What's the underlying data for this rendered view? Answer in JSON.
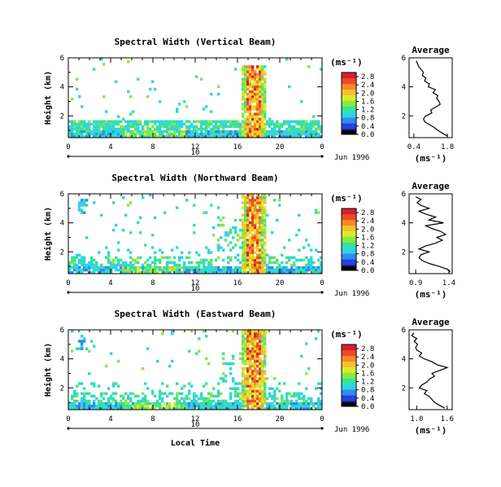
{
  "xlabel": "Local Time",
  "date_label": "Jun 1996",
  "day_label": "10",
  "colorbar_unit": "(ms⁻¹)",
  "average_title": "Average",
  "average_xlabel": "(ms⁻¹)",
  "ylabel": "Height (km)",
  "colormap": [
    "#1a1a8c",
    "#2a3fe0",
    "#2f8cf2",
    "#30d3e8",
    "#37e39a",
    "#86ea3f",
    "#d8ec2c",
    "#f6c22b",
    "#f58a2a",
    "#ef4a28",
    "#d7202b"
  ],
  "chart_data": [
    {
      "type": "heatmap",
      "title": "Spectral Width (Vertical Beam)",
      "xlabel": "Local Time",
      "ylabel": "Height (km)",
      "x_ticks": [
        "0",
        "4",
        "8",
        "12",
        "16",
        "20",
        "0"
      ],
      "y_ticks": [
        "2",
        "4",
        "6"
      ],
      "xlim": [
        0,
        24
      ],
      "ylim": [
        0.5,
        6
      ],
      "colorbar_ticks": [
        "0.0",
        "0.4",
        "0.8",
        "1.2",
        "1.6",
        "2.0",
        "2.4",
        "2.8"
      ],
      "colorbar_range": [
        0,
        3.0
      ],
      "average": {
        "title": "Average",
        "xlabel": "(ms⁻¹)",
        "x_ticks": [
          "0.4",
          "1.8"
        ],
        "y_ticks": [
          "2",
          "4",
          "6"
        ],
        "xlim": [
          0.2,
          2.0
        ],
        "heights": [
          0.6,
          0.8,
          1.0,
          1.2,
          1.4,
          1.6,
          1.8,
          2.0,
          2.2,
          2.4,
          2.6,
          2.8,
          3.0,
          3.2,
          3.4,
          3.6,
          3.8,
          4.0,
          4.2,
          4.4,
          4.6,
          4.8,
          5.0,
          5.2,
          5.4,
          5.6,
          5.8
        ],
        "values": [
          1.8,
          1.6,
          1.4,
          1.25,
          1.05,
          0.85,
          0.8,
          0.9,
          1.15,
          1.1,
          1.3,
          1.5,
          1.45,
          1.35,
          1.4,
          1.2,
          1.3,
          1.0,
          1.05,
          0.85,
          0.9,
          0.75,
          0.8,
          0.7,
          0.6,
          0.55,
          0.5
        ]
      }
    },
    {
      "type": "heatmap",
      "title": "Spectral Width (Northward Beam)",
      "xlabel": "Local Time",
      "ylabel": "Height (km)",
      "x_ticks": [
        "0",
        "4",
        "8",
        "12",
        "16",
        "20",
        "0"
      ],
      "y_ticks": [
        "2",
        "4",
        "6"
      ],
      "xlim": [
        0,
        24
      ],
      "ylim": [
        0.5,
        6
      ],
      "colorbar_ticks": [
        "0.0",
        "0.4",
        "0.8",
        "1.2",
        "1.6",
        "2.0",
        "2.4",
        "2.8"
      ],
      "colorbar_range": [
        0,
        3.0
      ],
      "average": {
        "title": "Average",
        "xlabel": "(ms⁻¹)",
        "x_ticks": [
          "0.9",
          "1.4"
        ],
        "y_ticks": [
          "2",
          "4",
          "6"
        ],
        "xlim": [
          0.8,
          1.45
        ],
        "heights": [
          0.6,
          0.8,
          1.0,
          1.2,
          1.4,
          1.6,
          1.8,
          2.0,
          2.2,
          2.4,
          2.6,
          2.8,
          3.0,
          3.2,
          3.4,
          3.6,
          3.8,
          4.0,
          4.2,
          4.4,
          4.6,
          4.8,
          5.0,
          5.2,
          5.4,
          5.6,
          5.8
        ],
        "values": [
          1.42,
          1.38,
          1.25,
          1.1,
          1.0,
          0.95,
          0.98,
          1.1,
          0.95,
          1.05,
          1.2,
          1.3,
          1.22,
          1.35,
          1.28,
          1.15,
          1.05,
          1.32,
          1.1,
          1.2,
          1.05,
          0.95,
          1.1,
          0.98,
          0.92,
          0.98,
          0.9
        ]
      }
    },
    {
      "type": "heatmap",
      "title": "Spectral Width (Eastward Beam)",
      "xlabel": "Local Time",
      "ylabel": "Height (km)",
      "x_ticks": [
        "0",
        "4",
        "8",
        "12",
        "16",
        "20",
        "0"
      ],
      "y_ticks": [
        "2",
        "4",
        "6"
      ],
      "xlim": [
        0,
        24
      ],
      "ylim": [
        0.5,
        6
      ],
      "colorbar_ticks": [
        "0.0",
        "0.4",
        "0.8",
        "1.2",
        "1.6",
        "2.0",
        "2.4",
        "2.8"
      ],
      "colorbar_range": [
        0,
        3.0
      ],
      "average": {
        "title": "Average",
        "xlabel": "(ms⁻¹)",
        "x_ticks": [
          "1.0",
          "1.6"
        ],
        "y_ticks": [
          "2",
          "4",
          "6"
        ],
        "xlim": [
          0.85,
          1.7
        ],
        "heights": [
          0.6,
          0.8,
          1.0,
          1.2,
          1.4,
          1.6,
          1.8,
          2.0,
          2.2,
          2.4,
          2.6,
          2.8,
          3.0,
          3.2,
          3.4,
          3.6,
          3.8,
          4.0,
          4.2,
          4.4,
          4.6,
          4.8,
          5.0,
          5.2,
          5.4,
          5.6,
          5.8
        ],
        "values": [
          1.55,
          1.45,
          1.35,
          1.3,
          1.25,
          1.15,
          1.2,
          1.05,
          1.1,
          1.2,
          1.25,
          1.35,
          1.3,
          1.45,
          1.6,
          1.4,
          1.3,
          1.15,
          1.05,
          1.1,
          1.0,
          0.98,
          1.02,
          0.95,
          1.0,
          0.9,
          0.95
        ]
      }
    }
  ]
}
